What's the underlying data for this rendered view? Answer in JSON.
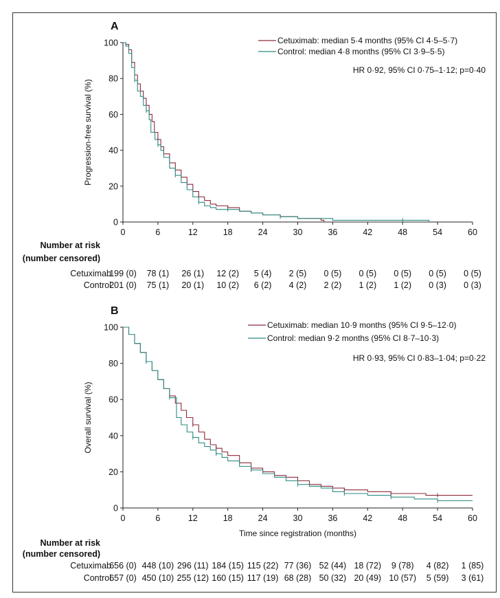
{
  "chart_data": [
    {
      "type": "line",
      "panel": "A",
      "ylabel": "Progression-free survival (%)",
      "xlabel": "",
      "xlim": [
        0,
        60
      ],
      "ylim": [
        0,
        100
      ],
      "x_ticks": [
        "0",
        "6",
        "12",
        "18",
        "24",
        "30",
        "36",
        "42",
        "48",
        "54",
        "60"
      ],
      "y_ticks": [
        "0",
        "20",
        "40",
        "60",
        "80",
        "100"
      ],
      "series": [
        {
          "name": "Cetuximab",
          "legend": "Cetuximab: median 5·4 months (95% CI 4·5–5·7)",
          "color": "#8a2a3a",
          "points": [
            [
              0,
              100
            ],
            [
              0.5,
              99
            ],
            [
              1,
              96
            ],
            [
              1.5,
              89
            ],
            [
              2,
              82
            ],
            [
              2.5,
              77
            ],
            [
              3,
              73
            ],
            [
              3.5,
              69
            ],
            [
              4,
              65
            ],
            [
              4.5,
              60
            ],
            [
              5,
              56
            ],
            [
              5.4,
              50
            ],
            [
              6,
              46
            ],
            [
              6.5,
              42
            ],
            [
              7,
              38
            ],
            [
              8,
              33
            ],
            [
              9,
              29
            ],
            [
              10,
              25
            ],
            [
              11,
              21
            ],
            [
              12,
              17
            ],
            [
              13,
              14
            ],
            [
              14,
              12
            ],
            [
              15,
              10
            ],
            [
              16,
              9
            ],
            [
              18,
              8
            ],
            [
              20,
              6
            ],
            [
              22,
              5
            ],
            [
              24,
              4
            ],
            [
              27,
              3
            ],
            [
              30,
              2
            ],
            [
              34,
              1
            ],
            [
              34.5,
              0
            ]
          ]
        },
        {
          "name": "Control",
          "legend": "Control: median 4·8 months (95% CI 3·9–5·5)",
          "color": "#2e8a84",
          "points": [
            [
              0,
              100
            ],
            [
              0.5,
              98
            ],
            [
              1,
              94
            ],
            [
              1.5,
              86
            ],
            [
              2,
              79
            ],
            [
              2.5,
              73
            ],
            [
              3,
              70
            ],
            [
              3.5,
              65
            ],
            [
              4,
              62
            ],
            [
              4.5,
              57
            ],
            [
              4.8,
              50
            ],
            [
              5.5,
              46
            ],
            [
              6,
              43
            ],
            [
              6.5,
              40
            ],
            [
              7,
              36
            ],
            [
              8,
              30
            ],
            [
              9,
              26
            ],
            [
              10,
              22
            ],
            [
              11,
              18
            ],
            [
              12,
              14
            ],
            [
              13,
              11
            ],
            [
              14,
              9
            ],
            [
              15,
              8
            ],
            [
              16,
              7
            ],
            [
              18,
              7
            ],
            [
              20,
              6
            ],
            [
              22,
              5
            ],
            [
              24,
              4
            ],
            [
              27,
              3
            ],
            [
              30,
              2
            ],
            [
              36,
              1
            ],
            [
              42,
              1
            ],
            [
              48,
              1
            ],
            [
              52,
              1
            ],
            [
              52.5,
              0
            ]
          ]
        }
      ],
      "hr_text": "HR 0·92, 95% CI 0·75–1·12; p=0·40",
      "risk_table": {
        "title_line1": "Number at risk",
        "title_line2": "(number censored)",
        "rows": [
          {
            "label": "Cetuximab",
            "values": [
              "199 (0)",
              "78 (1)",
              "26 (1)",
              "12 (2)",
              "5 (4)",
              "2 (5)",
              "0 (5)",
              "0 (5)",
              "0 (5)",
              "0 (5)",
              "0 (5)"
            ]
          },
          {
            "label": "Control",
            "values": [
              "201 (0)",
              "75 (1)",
              "20 (1)",
              "10 (2)",
              "6 (2)",
              "4 (2)",
              "2 (2)",
              "1 (2)",
              "1 (2)",
              "0 (3)",
              "0 (3)"
            ]
          }
        ]
      }
    },
    {
      "type": "line",
      "panel": "B",
      "ylabel": "Overall survival (%)",
      "xlabel": "Time since registration (months)",
      "xlim": [
        0,
        60
      ],
      "ylim": [
        0,
        100
      ],
      "x_ticks": [
        "0",
        "6",
        "12",
        "18",
        "24",
        "30",
        "36",
        "42",
        "48",
        "54",
        "60"
      ],
      "y_ticks": [
        "0",
        "20",
        "40",
        "60",
        "80",
        "100"
      ],
      "series": [
        {
          "name": "Cetuximab",
          "legend": "Cetuximab: median 10·9 months (95% CI 9·5–12·0)",
          "color": "#8a2a3a",
          "points": [
            [
              0,
              100
            ],
            [
              1,
              96
            ],
            [
              2,
              91
            ],
            [
              3,
              86
            ],
            [
              4,
              81
            ],
            [
              5,
              76
            ],
            [
              6,
              71
            ],
            [
              7,
              66
            ],
            [
              8,
              62
            ],
            [
              9,
              58
            ],
            [
              10,
              54
            ],
            [
              10.9,
              50
            ],
            [
              12,
              46
            ],
            [
              13,
              42
            ],
            [
              14,
              38
            ],
            [
              15,
              35
            ],
            [
              16,
              33
            ],
            [
              17,
              31
            ],
            [
              18,
              29
            ],
            [
              20,
              25
            ],
            [
              22,
              22
            ],
            [
              24,
              20
            ],
            [
              26,
              18
            ],
            [
              28,
              17
            ],
            [
              30,
              15
            ],
            [
              32,
              13
            ],
            [
              34,
              12
            ],
            [
              36,
              11
            ],
            [
              38,
              10
            ],
            [
              40,
              10
            ],
            [
              42,
              9
            ],
            [
              44,
              9
            ],
            [
              46,
              8
            ],
            [
              48,
              8
            ],
            [
              50,
              8
            ],
            [
              52,
              7
            ],
            [
              54,
              7
            ],
            [
              56,
              7
            ],
            [
              60,
              7
            ]
          ]
        },
        {
          "name": "Control",
          "legend": "Control: median 9·2 months (95% CI 8·7–10·3)",
          "color": "#2e8a84",
          "points": [
            [
              0,
              100
            ],
            [
              1,
              96
            ],
            [
              2,
              91
            ],
            [
              3,
              86
            ],
            [
              4,
              81
            ],
            [
              5,
              76
            ],
            [
              6,
              71
            ],
            [
              7,
              66
            ],
            [
              8,
              61
            ],
            [
              9.2,
              50
            ],
            [
              10,
              46
            ],
            [
              11,
              42
            ],
            [
              12,
              39
            ],
            [
              13,
              36
            ],
            [
              14,
              34
            ],
            [
              15,
              32
            ],
            [
              16,
              30
            ],
            [
              17,
              28
            ],
            [
              18,
              26
            ],
            [
              20,
              23
            ],
            [
              22,
              21
            ],
            [
              24,
              19
            ],
            [
              26,
              17
            ],
            [
              28,
              15
            ],
            [
              30,
              13
            ],
            [
              32,
              12
            ],
            [
              34,
              11
            ],
            [
              36,
              9
            ],
            [
              38,
              8
            ],
            [
              40,
              8
            ],
            [
              42,
              7
            ],
            [
              44,
              7
            ],
            [
              46,
              6
            ],
            [
              48,
              6
            ],
            [
              50,
              5
            ],
            [
              52,
              5
            ],
            [
              54,
              4
            ],
            [
              56,
              4
            ],
            [
              60,
              4
            ]
          ]
        }
      ],
      "hr_text": "HR 0·93, 95% CI 0·83–1·04; p=0·22",
      "risk_table": {
        "title_line1": "Number at risk",
        "title_line2": "(number censored)",
        "rows": [
          {
            "label": "Cetuximab",
            "values": [
              "656 (0)",
              "448 (10)",
              "296 (11)",
              "184 (15)",
              "115 (22)",
              "77 (36)",
              "52 (44)",
              "18 (72)",
              "9 (78)",
              "4 (82)",
              "1 (85)"
            ]
          },
          {
            "label": "Control",
            "values": [
              "657 (0)",
              "450 (10)",
              "255 (12)",
              "160 (15)",
              "117 (19)",
              "68 (28)",
              "50 (32)",
              "20 (49)",
              "10 (57)",
              "5 (59)",
              "3 (61)"
            ]
          }
        ]
      }
    }
  ]
}
